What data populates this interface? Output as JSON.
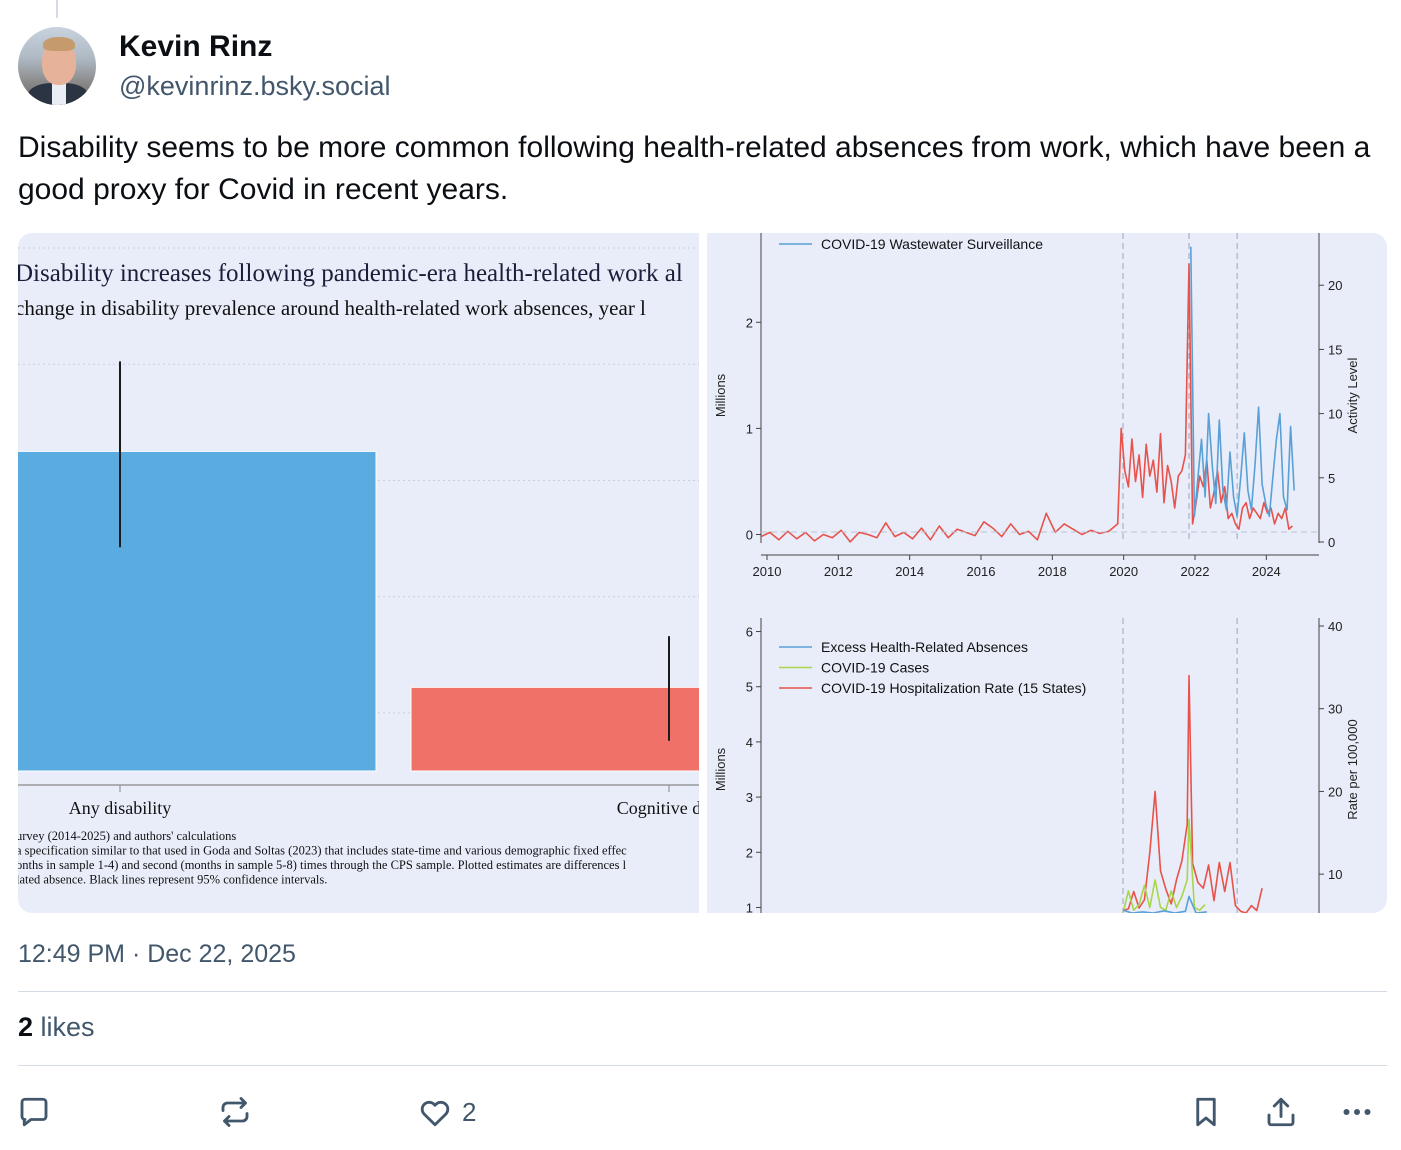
{
  "post": {
    "author": {
      "display_name": "Kevin Rinz",
      "handle": "@kevinrinz.bsky.social"
    },
    "text": "Disability seems to be more common following health-related absences from work, which have been a good proxy for Covid in recent years.",
    "timestamp": "12:49 PM · Dec 22, 2025",
    "likes_count": "2",
    "likes_label": "likes"
  },
  "actions": {
    "like_count": "2",
    "icons": [
      "reply-icon",
      "repost-icon",
      "like-icon",
      "bookmark-icon",
      "share-icon",
      "more-icon"
    ]
  },
  "colors": {
    "text": "#0b0f14",
    "muted": "#42576c",
    "divider": "#d4dbe2",
    "panel_bg": "#e8edf9",
    "bar_blue": "#5aabdf",
    "bar_red": "#f07168",
    "series_blue": "#5aa0d6",
    "series_red": "#e8524a",
    "series_green": "#a8d54a"
  },
  "chart_data": [
    {
      "type": "bar",
      "title": "Disability increases following pandemic-era health-related work al",
      "subtitle": "change in disability prevalence around health-related work absences, year l",
      "categories": [
        "Any disability",
        "Cognitive disa"
      ],
      "values": [
        0.55,
        0.144
      ],
      "ci_low": [
        0.385,
        0.052
      ],
      "ci_high": [
        0.705,
        0.232
      ],
      "ylim": [
        0,
        0.9
      ],
      "grid": true,
      "notes": [
        "urvey (2014-2025) and authors' calculations",
        "a specification similar to that used in Goda and Soltas (2023) that includes state-time and various demographic fixed effec",
        "onths in sample 1-4) and second (months in sample 5-8) times through the CPS sample. Plotted estimates are differences l",
        "lated absence. Black lines represent 95% confidence intervals."
      ]
    },
    {
      "type": "line",
      "ylabel": "Millions",
      "y2label": "Activity Level",
      "legend": [
        "COVID-19 Wastewater Surveillance"
      ],
      "xticks": [
        "2010",
        "2012",
        "2014",
        "2016",
        "2018",
        "2020",
        "2022",
        "2024"
      ],
      "yticks": [
        "0",
        "1",
        "2"
      ],
      "y2ticks": [
        "0",
        "5",
        "10",
        "15",
        "20"
      ],
      "xlim": [
        2010,
        2025
      ],
      "ylim": [
        -0.08,
        2.7
      ],
      "y2lim": [
        -0.08,
        22.9
      ],
      "vlines": [
        2020.15,
        2022.0,
        2023.35
      ],
      "series": [
        {
          "name": "Excess Health-Related Absences",
          "axis": "left",
          "x": [
            2010.0,
            2010.25,
            2010.5,
            2010.75,
            2011.0,
            2011.25,
            2011.5,
            2011.75,
            2012.0,
            2012.25,
            2012.5,
            2012.75,
            2013.0,
            2013.25,
            2013.5,
            2013.75,
            2014.0,
            2014.25,
            2014.5,
            2014.75,
            2015.0,
            2015.25,
            2015.5,
            2015.75,
            2016.0,
            2016.25,
            2016.5,
            2016.75,
            2017.0,
            2017.25,
            2017.5,
            2017.75,
            2018.0,
            2018.25,
            2018.5,
            2018.75,
            2019.0,
            2019.25,
            2019.5,
            2019.75,
            2020.0,
            2020.1,
            2020.2,
            2020.3,
            2020.4,
            2020.5,
            2020.6,
            2020.7,
            2020.8,
            2020.9,
            2021.0,
            2021.1,
            2021.2,
            2021.3,
            2021.4,
            2021.5,
            2021.6,
            2021.7,
            2021.8,
            2021.9,
            2022.0,
            2022.1,
            2022.2,
            2022.3,
            2022.4,
            2022.5,
            2022.6,
            2022.7,
            2022.8,
            2022.9,
            2023.0,
            2023.1,
            2023.2,
            2023.3,
            2023.4,
            2023.5,
            2023.6,
            2023.7,
            2023.8,
            2023.9,
            2024.0,
            2024.1,
            2024.2,
            2024.3,
            2024.4,
            2024.5,
            2024.6,
            2024.7,
            2024.8,
            2024.9
          ],
          "y": [
            -0.02,
            0.02,
            -0.05,
            0.03,
            -0.04,
            0.02,
            -0.06,
            0.0,
            -0.03,
            0.04,
            -0.07,
            0.02,
            0.0,
            -0.03,
            0.11,
            -0.02,
            0.02,
            -0.04,
            0.06,
            -0.05,
            0.08,
            -0.03,
            0.05,
            0.02,
            -0.01,
            0.12,
            0.06,
            -0.02,
            0.1,
            0.0,
            0.03,
            -0.05,
            0.2,
            0.02,
            0.1,
            0.05,
            0.0,
            0.04,
            0.01,
            0.03,
            0.1,
            1.0,
            0.6,
            0.45,
            0.9,
            0.5,
            0.75,
            0.35,
            0.85,
            0.55,
            0.7,
            0.4,
            0.95,
            0.3,
            0.65,
            0.5,
            0.25,
            0.55,
            0.6,
            0.75,
            2.55,
            0.1,
            0.3,
            0.55,
            0.45,
            0.7,
            0.25,
            0.4,
            0.6,
            0.3,
            0.45,
            0.15,
            0.2,
            0.1,
            0.05,
            0.25,
            0.3,
            0.15,
            0.25,
            0.2,
            0.15,
            0.3,
            0.2,
            0.25,
            0.1,
            0.2,
            0.15,
            0.25,
            0.05,
            0.08
          ]
        },
        {
          "name": "COVID-19 Wastewater Surveillance",
          "axis": "right",
          "x": [
            2022.05,
            2022.15,
            2022.25,
            2022.35,
            2022.45,
            2022.55,
            2022.65,
            2022.75,
            2022.85,
            2022.95,
            2023.05,
            2023.15,
            2023.25,
            2023.35,
            2023.45,
            2023.55,
            2023.65,
            2023.75,
            2023.85,
            2023.95,
            2024.05,
            2024.15,
            2024.25,
            2024.35,
            2024.45,
            2024.55,
            2024.65,
            2024.75,
            2024.85,
            2024.95
          ],
          "y": [
            23.0,
            2.0,
            5.0,
            8.0,
            3.5,
            10.0,
            6.0,
            3.0,
            9.5,
            4.0,
            2.5,
            7.0,
            3.5,
            2.0,
            5.0,
            8.5,
            4.0,
            2.5,
            6.0,
            10.5,
            4.5,
            3.0,
            2.0,
            5.0,
            8.0,
            10.0,
            3.5,
            2.5,
            9.0,
            4.0
          ]
        }
      ]
    },
    {
      "type": "line",
      "ylabel": "Millions",
      "y2label": "Rate per 100,000",
      "legend": [
        "Excess Health-Related Absences",
        "COVID-19 Cases",
        "COVID-19 Hospitalization Rate (15 States)"
      ],
      "yticks": [
        "1",
        "2",
        "3",
        "4",
        "5",
        "6"
      ],
      "y2ticks": [
        "10",
        "20",
        "30",
        "40"
      ],
      "xlim": [
        2010,
        2025
      ],
      "ylim": [
        0.9,
        6.1
      ],
      "y2lim": [
        5.3,
        40.0
      ],
      "vlines": [
        2020.15,
        2023.35
      ],
      "series": [
        {
          "name": "COVID-19 Hospitalization Rate (15 States)",
          "axis": "right",
          "x": [
            2020.15,
            2020.3,
            2020.45,
            2020.6,
            2020.75,
            2020.9,
            2021.05,
            2021.2,
            2021.35,
            2021.5,
            2021.65,
            2021.8,
            2021.95,
            2022.0,
            2022.1,
            2022.25,
            2022.4,
            2022.55,
            2022.7,
            2022.85,
            2023.0,
            2023.15,
            2023.3,
            2023.45,
            2023.6,
            2023.75,
            2023.9,
            2024.05
          ],
          "y": [
            5.6,
            5.8,
            7.9,
            5.9,
            6.9,
            12.6,
            20.0,
            10.4,
            8.2,
            6.4,
            9.3,
            11.6,
            16.0,
            34.0,
            11.3,
            9.0,
            8.3,
            11.1,
            6.8,
            11.4,
            7.9,
            11.4,
            6.2,
            5.5,
            5.3,
            6.2,
            5.6,
            8.3
          ]
        },
        {
          "name": "COVID-19 Cases",
          "axis": "left",
          "x": [
            2020.15,
            2020.3,
            2020.45,
            2020.6,
            2020.75,
            2020.9,
            2021.05,
            2021.2,
            2021.35,
            2021.5,
            2021.65,
            2021.8,
            2021.95,
            2022.0,
            2022.15,
            2022.3,
            2022.45
          ],
          "y": [
            0.9,
            1.3,
            0.95,
            1.05,
            1.4,
            1.0,
            1.5,
            1.0,
            0.95,
            1.3,
            1.0,
            1.2,
            1.5,
            2.6,
            1.0,
            0.95,
            1.05
          ]
        },
        {
          "name": "Excess Health-Related Absences",
          "axis": "left",
          "x": [
            2020.15,
            2020.4,
            2020.7,
            2021.0,
            2021.3,
            2021.6,
            2021.9,
            2022.0,
            2022.2,
            2022.5
          ],
          "y": [
            0.95,
            0.9,
            0.92,
            0.9,
            0.94,
            0.9,
            0.93,
            1.2,
            0.9,
            0.92
          ]
        }
      ]
    }
  ]
}
